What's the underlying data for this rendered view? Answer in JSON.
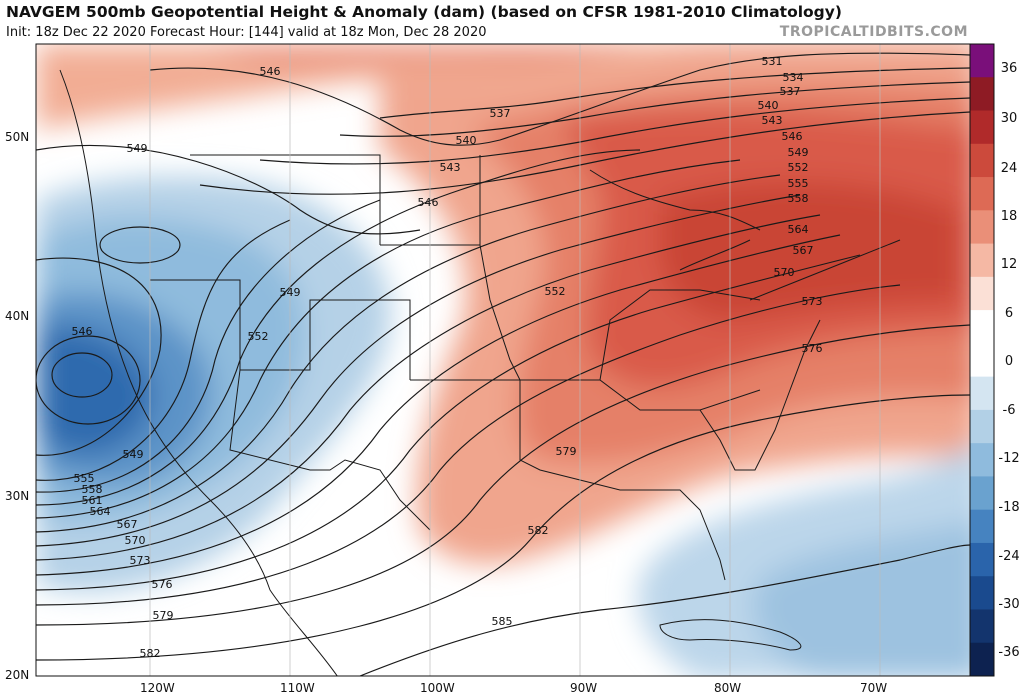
{
  "header": {
    "title": "NAVGEM 500mb Geopotential Height & Anomaly (dam) (based on CFSR 1981-2010 Climatology)",
    "subtitle": "Init: 18z Dec 22 2020   Forecast Hour: [144]   valid at 18z Mon, Dec 28 2020",
    "credit": "TROPICALTIDBITS.COM"
  },
  "axes": {
    "lat_labels": [
      "50N",
      "40N",
      "30N",
      "20N"
    ],
    "lon_labels": [
      "120W",
      "110W",
      "100W",
      "90W",
      "80W",
      "70W"
    ]
  },
  "colorbar": {
    "labels": [
      "36",
      "30",
      "24",
      "18",
      "12",
      "6",
      "0",
      "-6",
      "-12",
      "-18",
      "-24",
      "-30",
      "-36"
    ],
    "colors": [
      "#7a0f7a",
      "#8e1b24",
      "#b02a2a",
      "#cc4a3c",
      "#dd6a55",
      "#ea8f78",
      "#f5b8a4",
      "#fbe0d6",
      "#ffffff",
      "#ffffff",
      "#d4e5f1",
      "#b2d0e6",
      "#8fbbdd",
      "#6aa2cf",
      "#4683c0",
      "#2a64ab",
      "#1a4a8e",
      "#13346d",
      "#0d2250"
    ]
  },
  "contours": {
    "labels_west": [
      "546",
      "549",
      "549",
      "552",
      "555",
      "558",
      "561",
      "564",
      "567",
      "570",
      "573",
      "576",
      "579",
      "582"
    ],
    "labels_east": [
      "531",
      "534",
      "537",
      "540",
      "543",
      "546",
      "549",
      "552",
      "555",
      "558",
      "564",
      "567",
      "570",
      "573",
      "576",
      "579",
      "582",
      "585"
    ],
    "labels_north": [
      "546",
      "537",
      "540",
      "543",
      "546",
      "549",
      "552"
    ]
  }
}
